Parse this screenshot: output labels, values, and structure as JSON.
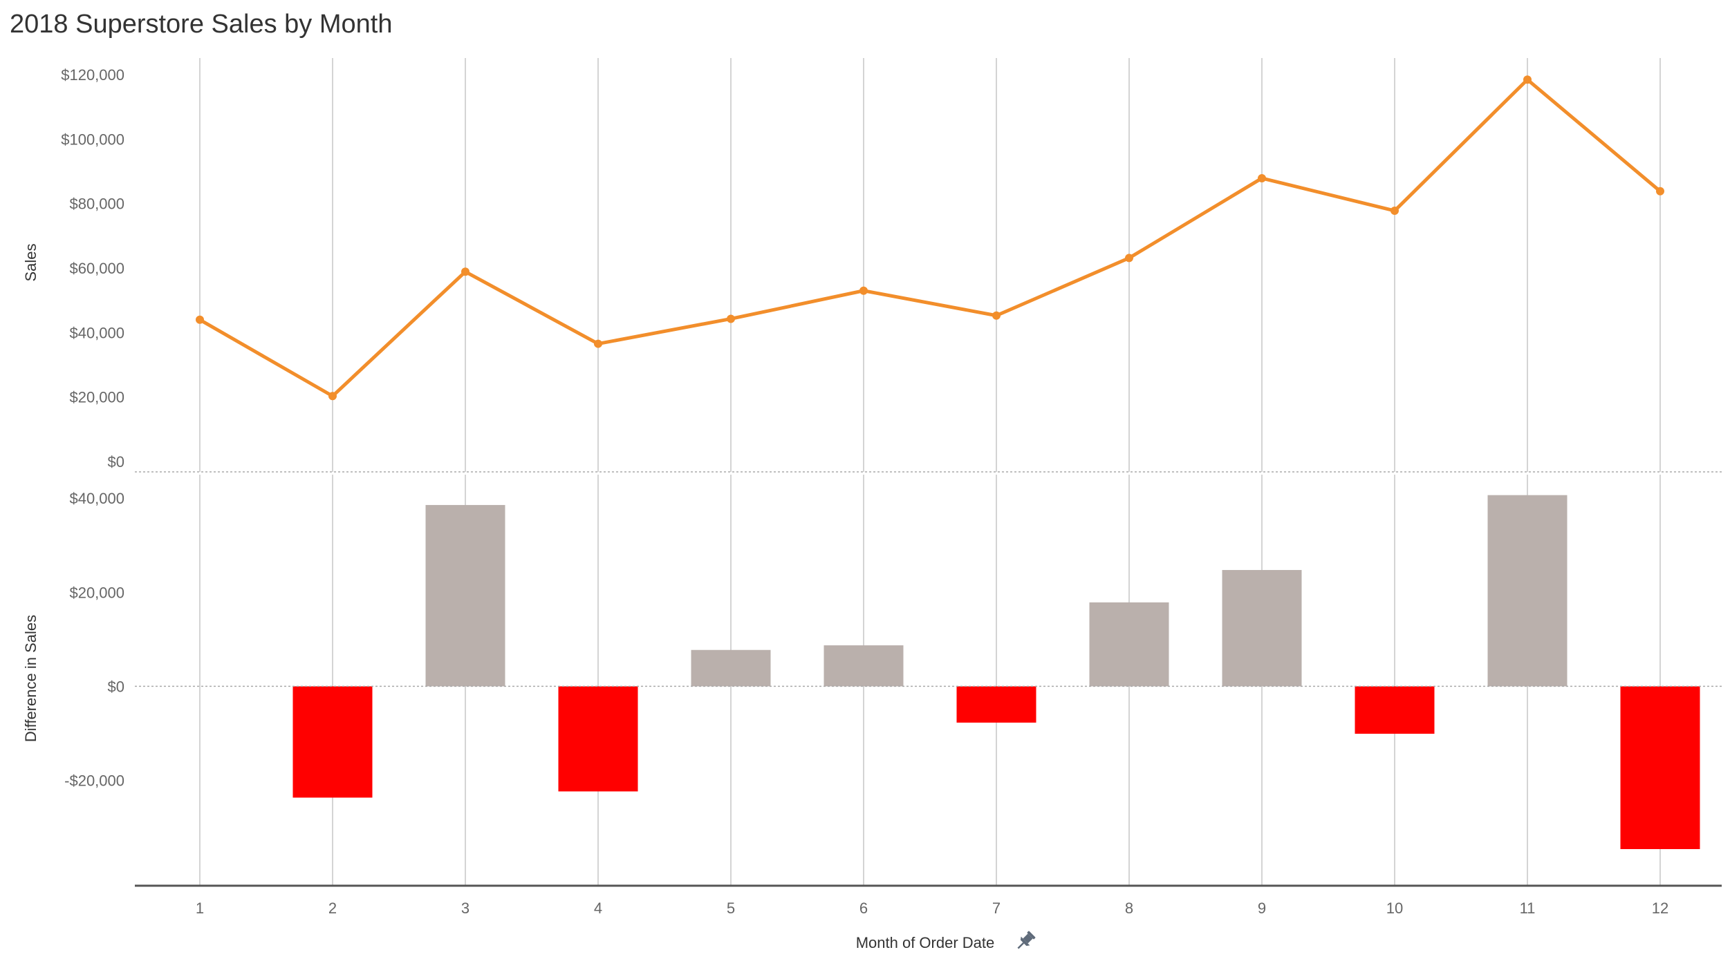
{
  "title": "2018 Superstore Sales by Month",
  "chart_data": [
    {
      "type": "line",
      "ylabel": "Sales",
      "x": [
        1,
        2,
        3,
        4,
        5,
        6,
        7,
        8,
        9,
        10,
        11,
        12
      ],
      "values": [
        43971,
        20301,
        58872,
        36522,
        44261,
        52982,
        45264,
        63121,
        87867,
        77777,
        118448,
        83829
      ],
      "ylim": [
        0,
        120000
      ],
      "yticks": [
        0,
        20000,
        40000,
        60000,
        80000,
        100000,
        120000
      ],
      "ytick_labels": [
        "$0",
        "$20,000",
        "$40,000",
        "$60,000",
        "$80,000",
        "$100,000",
        "$120,000"
      ],
      "color": "#f28e2b",
      "grid": "vertical"
    },
    {
      "type": "bar",
      "ylabel": "Difference in Sales",
      "xlabel": "Month of Order Date",
      "categories": [
        "1",
        "2",
        "3",
        "4",
        "5",
        "6",
        "7",
        "8",
        "9",
        "10",
        "11",
        "12"
      ],
      "values": [
        null,
        -23670,
        38571,
        -22350,
        7739,
        8721,
        -7718,
        17857,
        24746,
        -10090,
        40671,
        -34619
      ],
      "ylim": [
        -38000,
        44000
      ],
      "yticks": [
        -20000,
        0,
        20000,
        40000
      ],
      "ytick_labels": [
        "-$20,000",
        "$0",
        "$20,000",
        "$40,000"
      ],
      "positive_color": "#bab0ac",
      "negative_color": "#ff0000",
      "grid": "vertical"
    }
  ],
  "icons": {
    "axis_pin": "pin-icon"
  }
}
